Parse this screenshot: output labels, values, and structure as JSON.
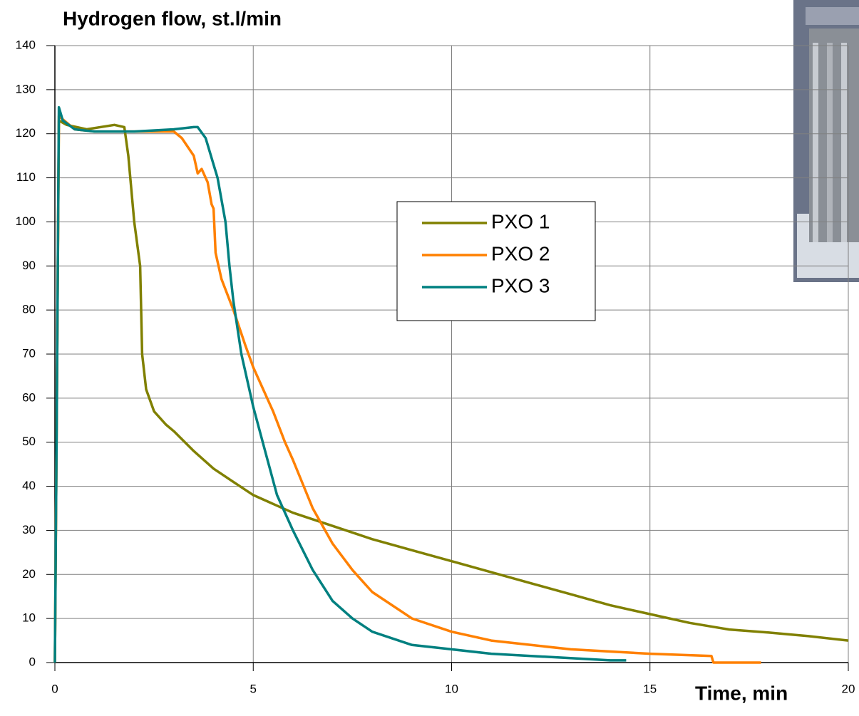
{
  "chart_data": {
    "type": "line",
    "title": "Hydrogen flow, st.l/min",
    "x_label": "Time, min",
    "xlim": [
      0,
      20
    ],
    "xticks": [
      0,
      5,
      10,
      15,
      20
    ],
    "ylim": [
      0,
      140
    ],
    "yticks": [
      0,
      10,
      20,
      30,
      40,
      50,
      60,
      70,
      80,
      90,
      100,
      110,
      120,
      130,
      140
    ],
    "grid": true,
    "legend": "center",
    "series": [
      {
        "name": "PXO 1",
        "color": "#808000",
        "x": [
          0,
          0.05,
          0.1,
          0.3,
          0.8,
          1.5,
          1.75,
          1.85,
          2.0,
          2.15,
          2.2,
          2.3,
          2.5,
          2.8,
          3,
          3.5,
          4,
          4.5,
          5,
          6,
          7,
          8,
          9,
          10,
          11,
          12,
          13,
          14,
          15,
          16,
          17,
          18,
          19,
          20
        ],
        "values": [
          0,
          60,
          123,
          122,
          121,
          122,
          121.5,
          115,
          100,
          90,
          70,
          62,
          57,
          54,
          52.5,
          48,
          44,
          41,
          38,
          34,
          31,
          28,
          25.5,
          23,
          20.5,
          18,
          15.5,
          13,
          11,
          9,
          7.5,
          6.8,
          6,
          5
        ]
      },
      {
        "name": "PXO 2",
        "color": "#ff8000",
        "x": [
          0,
          0.05,
          0.1,
          0.5,
          1,
          2,
          3,
          3.2,
          3.5,
          3.6,
          3.7,
          3.85,
          3.95,
          4.0,
          4.05,
          4.2,
          4.5,
          4.8,
          5,
          5.5,
          5.8,
          6,
          6.5,
          7,
          7.5,
          8,
          9,
          10,
          11,
          12,
          13,
          14,
          15,
          16.55,
          16.6,
          17.8
        ],
        "values": [
          0,
          60,
          124,
          121,
          120.5,
          120.5,
          120.5,
          119,
          115,
          111,
          112,
          109,
          104,
          103,
          93,
          87,
          80,
          72,
          67,
          57,
          50,
          46,
          35,
          27,
          21,
          16,
          10,
          7,
          5,
          4,
          3,
          2.5,
          2,
          1.5,
          0,
          0
        ]
      },
      {
        "name": "PXO 3",
        "color": "#008080",
        "x": [
          0,
          0.05,
          0.1,
          0.2,
          0.5,
          1,
          2,
          3,
          3.5,
          3.6,
          3.8,
          4,
          4.1,
          4.3,
          4.4,
          4.5,
          4.7,
          5,
          5.3,
          5.6,
          6,
          6.5,
          7,
          7.5,
          8,
          9,
          10,
          11,
          12,
          13,
          14,
          14.4
        ],
        "values": [
          0,
          60,
          126,
          123,
          121,
          120.5,
          120.5,
          121,
          121.5,
          121.5,
          119,
          113,
          110,
          100,
          90,
          82,
          70,
          58,
          48,
          38,
          30,
          21,
          14,
          10,
          7,
          4,
          3,
          2,
          1.5,
          1,
          0.5,
          0.5
        ]
      }
    ]
  }
}
